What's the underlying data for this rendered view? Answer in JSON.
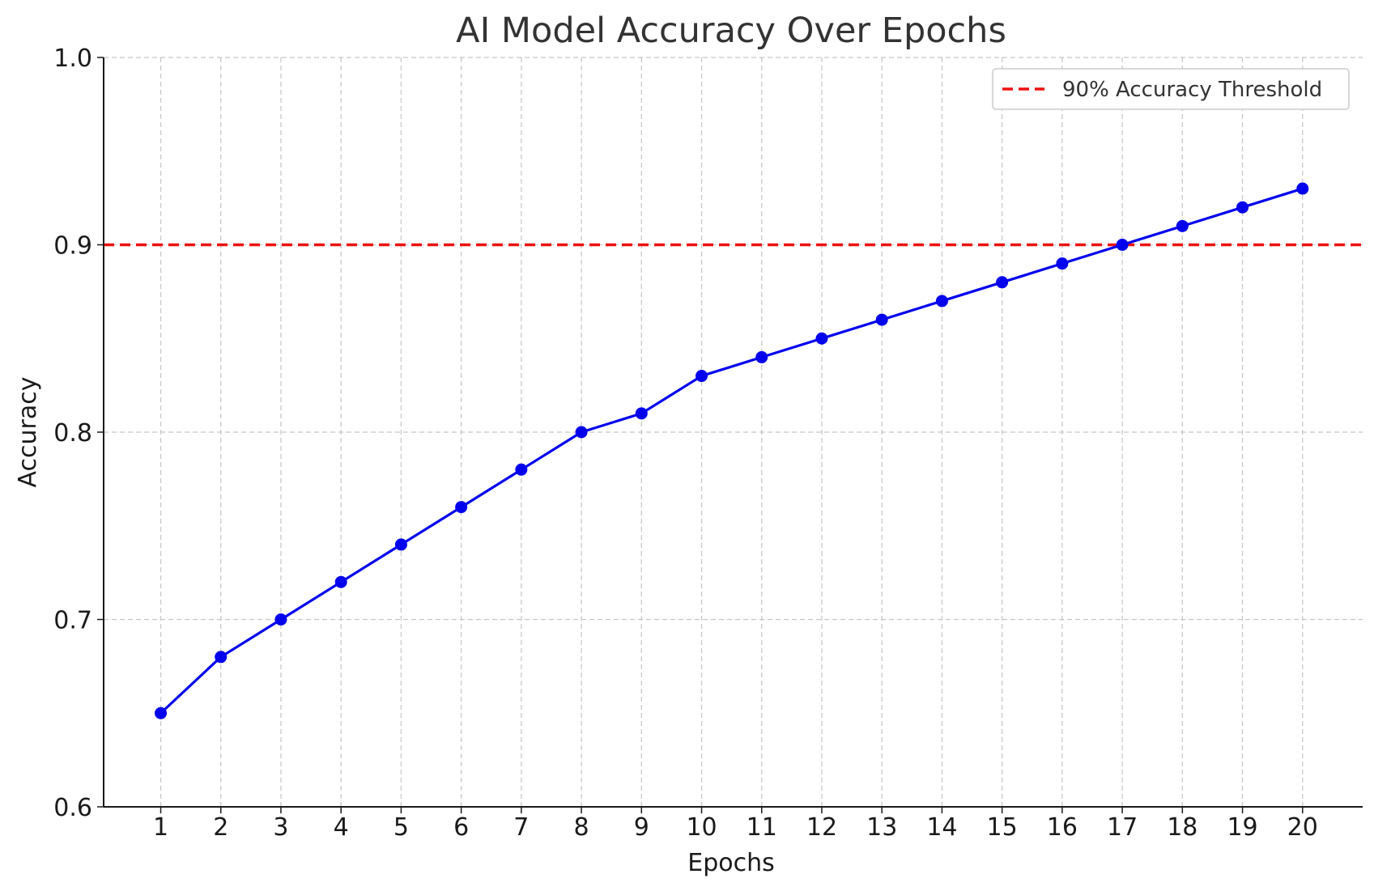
{
  "chart_data": {
    "type": "line",
    "title": "AI Model Accuracy Over Epochs",
    "xlabel": "Epochs",
    "ylabel": "Accuracy",
    "x": [
      1,
      2,
      3,
      4,
      5,
      6,
      7,
      8,
      9,
      10,
      11,
      12,
      13,
      14,
      15,
      16,
      17,
      18,
      19,
      20
    ],
    "x_ticks": [
      "1",
      "2",
      "3",
      "4",
      "5",
      "6",
      "7",
      "8",
      "9",
      "10",
      "11",
      "12",
      "13",
      "14",
      "15",
      "16",
      "17",
      "18",
      "19",
      "20"
    ],
    "y_ticks": [
      "0.6",
      "0.7",
      "0.8",
      "0.9",
      "1.0"
    ],
    "y_tick_values": [
      0.6,
      0.7,
      0.8,
      0.9,
      1.0
    ],
    "xlim": [
      0.05,
      21.0
    ],
    "ylim": [
      0.6,
      1.0
    ],
    "series": [
      {
        "values": [
          0.65,
          0.68,
          0.7,
          0.72,
          0.74,
          0.76,
          0.78,
          0.8,
          0.81,
          0.83,
          0.84,
          0.85,
          0.86,
          0.87,
          0.88,
          0.89,
          0.9,
          0.91,
          0.92,
          0.93
        ],
        "color": "#0000ee",
        "marker": "circle",
        "line_style": "solid"
      }
    ],
    "threshold": {
      "name": "90% Accuracy Threshold",
      "value": 0.9,
      "color": "#ee1111",
      "line_style": "dashed"
    },
    "legend_position": "top-right",
    "grid": true
  }
}
